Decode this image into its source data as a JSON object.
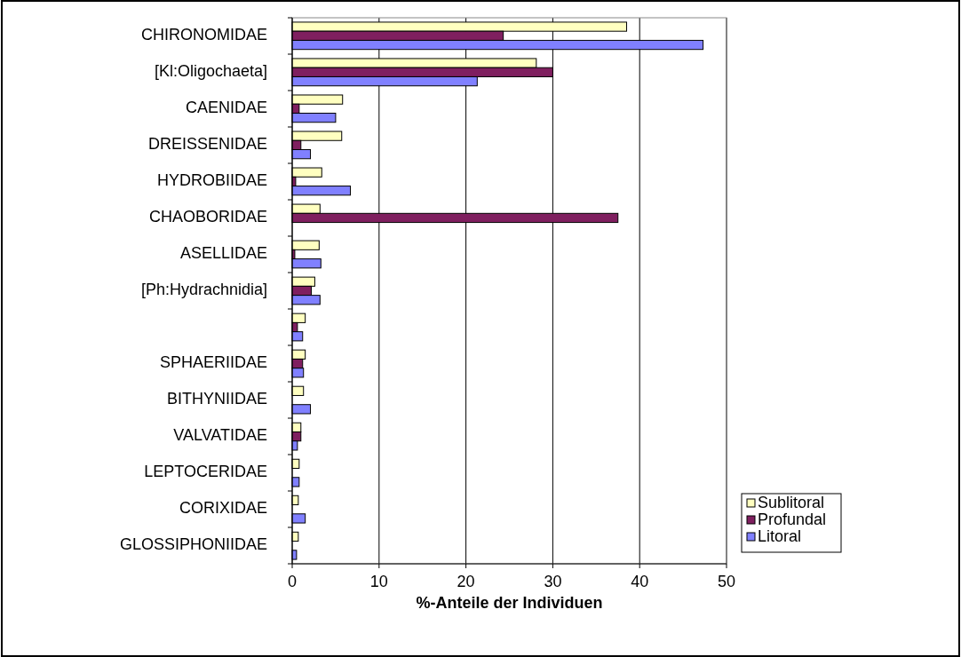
{
  "chart_data": {
    "type": "bar",
    "orientation": "horizontal",
    "xlabel": "%-Anteile der Individuen",
    "categories": [
      "CHIRONOMIDAE",
      "[Kl:Oligochaeta]",
      "CAENIDAE",
      "DREISSENIDAE",
      "HYDROBIIDAE",
      "CHAOBORIDAE",
      "ASELLIDAE",
      "[Ph:Hydrachnidia]",
      null,
      "SPHAERIIDAE",
      "BITHYNIIDAE",
      "VALVATIDAE",
      "LEPTOCERIDAE",
      "CORIXIDAE",
      "GLOSSIPHONIIDAE"
    ],
    "series": [
      {
        "name": "Sublitoral",
        "color": "#ffffc0",
        "values": [
          38.5,
          28.1,
          5.8,
          5.7,
          3.4,
          3.2,
          3.1,
          2.6,
          1.5,
          1.5,
          1.3,
          1.0,
          0.8,
          0.7,
          0.7
        ]
      },
      {
        "name": "Profundal",
        "color": "#7f1f5f",
        "values": [
          24.3,
          30.0,
          0.8,
          1.0,
          0.4,
          37.5,
          0.3,
          2.2,
          0.6,
          1.2,
          0,
          1.0,
          0,
          0,
          0
        ]
      },
      {
        "name": "Litoral",
        "color": "#8080ff",
        "values": [
          47.3,
          21.3,
          5.0,
          2.1,
          6.7,
          0,
          3.3,
          3.2,
          1.2,
          1.3,
          2.1,
          0.6,
          0.8,
          1.5,
          0.5
        ]
      }
    ],
    "xlim": [
      0,
      50
    ],
    "xticks": [
      0,
      10,
      20,
      30,
      40,
      50
    ],
    "grid": "x",
    "legend": "bottom right"
  }
}
